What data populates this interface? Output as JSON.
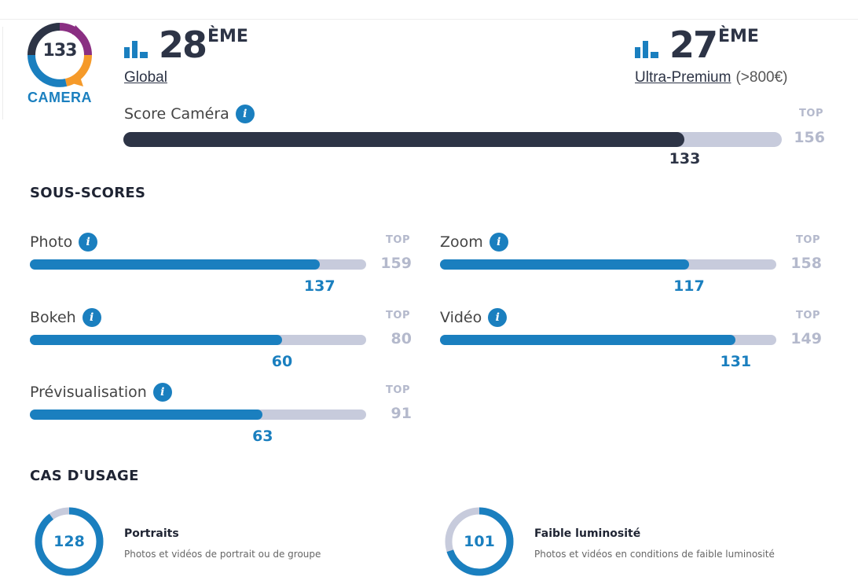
{
  "logo": {
    "score": "133",
    "label": "CAMERA"
  },
  "ranks": {
    "global": {
      "number": "28",
      "suffix": "ÈME",
      "link": "Global"
    },
    "segment": {
      "number": "27",
      "suffix": "ÈME",
      "link": "Ultra-Premium",
      "extra": "(>800€)"
    }
  },
  "main_score": {
    "label": "Score Caméra",
    "top_label": "TOP",
    "top_value": "156",
    "value": "133",
    "fraction": 0.8526
  },
  "subscores": {
    "title": "SOUS-SCORES",
    "items": [
      {
        "label": "Photo",
        "top_label": "TOP",
        "top_value": "159",
        "value": "137",
        "fraction": 0.8616
      },
      {
        "label": "Zoom",
        "top_label": "TOP",
        "top_value": "158",
        "value": "117",
        "fraction": 0.7405
      },
      {
        "label": "Bokeh",
        "top_label": "TOP",
        "top_value": "80",
        "value": "60",
        "fraction": 0.75
      },
      {
        "label": "Vidéo",
        "top_label": "TOP",
        "top_value": "149",
        "value": "131",
        "fraction": 0.8792
      },
      {
        "label": "Prévisualisation",
        "top_label": "TOP",
        "top_value": "91",
        "value": "63",
        "fraction": 0.6923
      }
    ]
  },
  "usage": {
    "title": "CAS D'USAGE",
    "items": [
      {
        "value": "128",
        "fraction": 0.9,
        "title": "Portraits",
        "description": "Photos et vidéos de portrait ou de groupe"
      },
      {
        "value": "101",
        "fraction": 0.7,
        "title": "Faible luminosité",
        "description": "Photos et vidéos en conditions de faible luminosité"
      }
    ]
  },
  "colors": {
    "dark": "#2d3446",
    "accent": "#1a7fbf",
    "track": "#c7cbdc",
    "muted": "#b4b9cc"
  },
  "icons": {
    "info": "i",
    "rank": "bar-chart-icon"
  }
}
